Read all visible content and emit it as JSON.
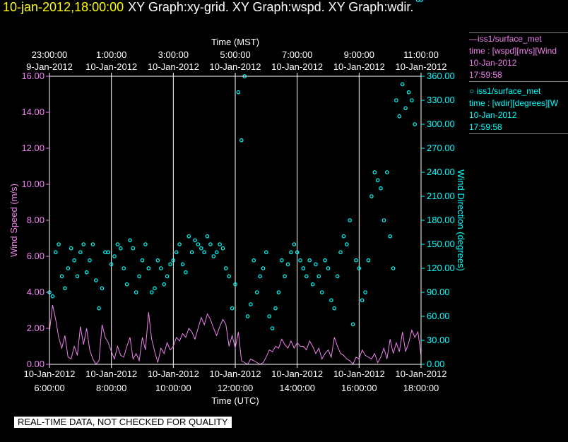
{
  "header": {
    "timestamp": "10-jan-2012,18:00:00",
    "graphs": "XY Graph:xy-grid.  XY Graph:wspd.  XY Graph:wdir."
  },
  "legend": {
    "wspd": {
      "line1": "—iss1/surface_met",
      "line2": "time : [wspd][m/s][Wind",
      "line3": "10-Jan-2012",
      "line4": "17:59:58"
    },
    "wdir": {
      "line1": "○ iss1/surface_met",
      "line2": "time : [wdir][degrees][W",
      "line3": "10-Jan-2012",
      "line4": "17:59:58"
    }
  },
  "footer": {
    "quality_notice": "REAL-TIME DATA, NOT CHECKED FOR QUALITY"
  },
  "colors": {
    "background": "#000000",
    "wspd": "#ee82ee",
    "wdir": "#00ffff",
    "grid": "#ffffff",
    "timestamp": "#ffff00"
  },
  "chart_data": {
    "type": "line",
    "x_top_label": "Time (MST)",
    "x_top_ticks": [
      {
        "time": "23:00:00",
        "date": "9-Jan-2012"
      },
      {
        "time": "1:00:00",
        "date": "10-Jan-2012"
      },
      {
        "time": "3:00:00",
        "date": "10-Jan-2012"
      },
      {
        "time": "5:00:00",
        "date": "10-Jan-2012"
      },
      {
        "time": "7:00:00",
        "date": "10-Jan-2012"
      },
      {
        "time": "9:00:00",
        "date": "10-Jan-2012"
      },
      {
        "time": "11:00:00",
        "date": "10-Jan-2012"
      }
    ],
    "x_bottom_label": "Time (UTC)",
    "x_bottom_ticks": [
      {
        "date": "10-Jan-2012",
        "time": "6:00:00"
      },
      {
        "date": "10-Jan-2012",
        "time": "8:00:00"
      },
      {
        "date": "10-Jan-2012",
        "time": "10:00:00"
      },
      {
        "date": "10-Jan-2012",
        "time": "12:00:00"
      },
      {
        "date": "10-Jan-2012",
        "time": "14:00:00"
      },
      {
        "date": "10-Jan-2012",
        "time": "16:00:00"
      },
      {
        "date": "10-Jan-2012",
        "time": "18:00:00"
      }
    ],
    "x_range_utc_hours": [
      6,
      18
    ],
    "y_left_label": "Wind Speed (m/s)",
    "y_left_ticks": [
      "0.00",
      "2.00",
      "4.00",
      "6.00",
      "8.00",
      "10.00",
      "12.00",
      "14.00",
      "16.00"
    ],
    "y_left_range": [
      0,
      16
    ],
    "y_right_label": "Wind Direction (degrees)",
    "y_right_ticks": [
      "0.00",
      "30.00",
      "60.00",
      "90.00",
      "120.00",
      "150.00",
      "180.00",
      "210.00",
      "240.00",
      "270.00",
      "300.00",
      "330.00",
      "360.00"
    ],
    "y_right_range": [
      0,
      360
    ],
    "grid": "vertical lines at x ticks",
    "series": [
      {
        "name": "iss1/surface_met wspd",
        "style": "line",
        "x_utc_hours": [
          6.0,
          6.1,
          6.2,
          6.3,
          6.4,
          6.5,
          6.6,
          6.7,
          6.8,
          6.9,
          7.0,
          7.1,
          7.2,
          7.3,
          7.4,
          7.5,
          7.6,
          7.7,
          7.8,
          7.9,
          8.0,
          8.1,
          8.2,
          8.3,
          8.4,
          8.5,
          8.6,
          8.7,
          8.8,
          8.9,
          9.0,
          9.1,
          9.2,
          9.3,
          9.4,
          9.5,
          9.6,
          9.7,
          9.8,
          9.9,
          10.0,
          10.1,
          10.2,
          10.3,
          10.4,
          10.5,
          10.6,
          10.7,
          10.8,
          10.9,
          11.0,
          11.1,
          11.2,
          11.3,
          11.4,
          11.5,
          11.6,
          11.7,
          11.8,
          11.9,
          12.0,
          12.1,
          12.2,
          12.3,
          12.4,
          12.5,
          12.6,
          12.7,
          12.8,
          12.9,
          13.0,
          13.1,
          13.2,
          13.3,
          13.4,
          13.5,
          13.6,
          13.7,
          13.8,
          13.9,
          14.0,
          14.1,
          14.2,
          14.3,
          14.4,
          14.5,
          14.6,
          14.7,
          14.8,
          14.9,
          15.0,
          15.1,
          15.2,
          15.3,
          15.4,
          15.5,
          15.6,
          15.7,
          15.8,
          15.9,
          16.0,
          16.1,
          16.2,
          16.3,
          16.4,
          16.5,
          16.6,
          16.7,
          16.8,
          16.9,
          17.0,
          17.1,
          17.2,
          17.3,
          17.4,
          17.5,
          17.6,
          17.7,
          17.8,
          17.9,
          18.0
        ],
        "values": [
          1.8,
          3.3,
          2.5,
          1.5,
          0.9,
          1.6,
          0.4,
          0.3,
          1.0,
          0.5,
          2.1,
          1.1,
          2.0,
          0.8,
          0.3,
          0.0,
          0.2,
          2.2,
          1.5,
          1.2,
          0.7,
          0.3,
          1.0,
          0.5,
          0.4,
          1.0,
          1.5,
          0.3,
          0.6,
          0.2,
          1.5,
          0.8,
          2.9,
          1.4,
          0.7,
          0.1,
          0.9,
          0.6,
          1.2,
          0.8,
          1.0,
          1.5,
          1.3,
          1.7,
          1.5,
          2.0,
          1.8,
          1.4,
          2.0,
          2.6,
          2.2,
          2.8,
          2.5,
          2.0,
          1.6,
          2.1,
          2.5,
          2.2,
          1.0,
          1.6,
          0.9,
          1.8,
          0.2,
          0.1,
          0.0,
          0.3,
          0.2,
          0.1,
          0.0,
          0.1,
          0.4,
          0.8,
          0.7,
          1.0,
          0.9,
          1.4,
          1.1,
          0.9,
          1.3,
          0.9,
          1.2,
          1.0,
          1.0,
          0.8,
          1.3,
          1.0,
          0.6,
          0.9,
          0.3,
          0.6,
          0.8,
          0.4,
          1.5,
          1.0,
          0.6,
          0.5,
          0.3,
          0.2,
          0.0,
          0.4,
          0.3,
          0.8,
          0.5,
          0.4,
          0.3,
          0.6,
          0.1,
          0.4,
          0.9,
          0.3,
          1.4,
          0.6,
          1.2,
          0.7,
          1.8,
          0.7,
          1.2,
          1.9,
          1.5,
          1.8,
          0.5
        ]
      },
      {
        "name": "iss1/surface_met wdir",
        "style": "markers",
        "x_utc_hours": [
          6.0,
          6.1,
          6.2,
          6.3,
          6.4,
          6.5,
          6.6,
          6.7,
          6.8,
          6.9,
          7.0,
          7.1,
          7.2,
          7.3,
          7.4,
          7.5,
          7.6,
          7.7,
          7.8,
          7.9,
          8.0,
          8.1,
          8.2,
          8.3,
          8.4,
          8.5,
          8.6,
          8.7,
          8.8,
          8.9,
          9.0,
          9.1,
          9.2,
          9.3,
          9.4,
          9.5,
          9.6,
          9.7,
          9.8,
          9.9,
          10.0,
          10.1,
          10.2,
          10.3,
          10.4,
          10.5,
          10.6,
          10.7,
          10.8,
          10.9,
          11.0,
          11.1,
          11.2,
          11.3,
          11.4,
          11.5,
          11.6,
          11.7,
          11.8,
          11.9,
          12.0,
          12.1,
          12.2,
          12.3,
          12.4,
          12.5,
          12.6,
          12.7,
          12.8,
          12.9,
          13.0,
          13.1,
          13.2,
          13.3,
          13.4,
          13.5,
          13.6,
          13.7,
          13.8,
          13.9,
          14.0,
          14.1,
          14.2,
          14.3,
          14.4,
          14.5,
          14.6,
          14.7,
          14.8,
          14.9,
          15.0,
          15.1,
          15.2,
          15.3,
          15.4,
          15.5,
          15.6,
          15.7,
          15.8,
          15.9,
          16.0,
          16.1,
          16.2,
          16.3,
          16.4,
          16.5,
          16.6,
          16.7,
          16.8,
          16.9,
          17.0,
          17.1,
          17.2,
          17.3,
          17.4,
          17.5,
          17.6,
          17.7,
          17.8,
          17.9,
          18.0
        ],
        "values": [
          90,
          85,
          140,
          150,
          110,
          95,
          120,
          145,
          130,
          110,
          140,
          150,
          115,
          130,
          150,
          105,
          70,
          95,
          140,
          140,
          125,
          135,
          150,
          145,
          120,
          100,
          155,
          145,
          90,
          110,
          130,
          150,
          120,
          90,
          95,
          130,
          120,
          100,
          110,
          125,
          130,
          140,
          150,
          125,
          115,
          160,
          140,
          155,
          150,
          145,
          140,
          160,
          150,
          135,
          140,
          150,
          145,
          120,
          110,
          70,
          100,
          340,
          280,
          360,
          60,
          75,
          130,
          90,
          110,
          120,
          140,
          60,
          45,
          70,
          90,
          130,
          110,
          125,
          140,
          150,
          140,
          130,
          120,
          110,
          130,
          100,
          125,
          110,
          90,
          130,
          120,
          80,
          70,
          110,
          140,
          160,
          150,
          180,
          50,
          130,
          120,
          80,
          90,
          130,
          210,
          240,
          230,
          220,
          180,
          240,
          160,
          120,
          330,
          310,
          350,
          320,
          340,
          330,
          300
        ]
      }
    ],
    "annotations": [
      "REAL-TIME DATA, NOT CHECKED FOR QUALITY"
    ]
  }
}
